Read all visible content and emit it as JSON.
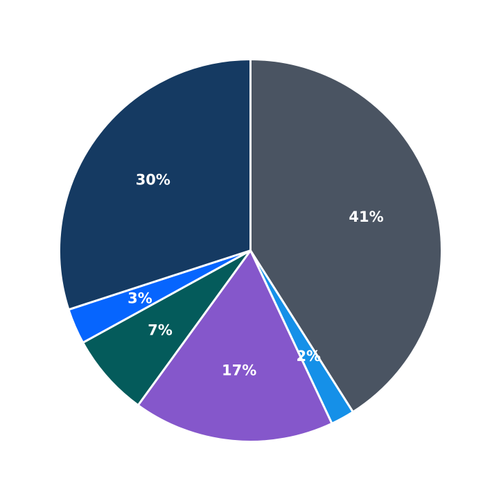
{
  "chart_data": {
    "type": "pie",
    "title": "",
    "start": "12 o'clock",
    "direction": "clockwise",
    "legend": "none",
    "slices": [
      {
        "value": 41,
        "label": "41%",
        "color": "#4a5462"
      },
      {
        "value": 2,
        "label": "2%",
        "color": "#1590e8"
      },
      {
        "value": 17,
        "label": "17%",
        "color": "#8557cb"
      },
      {
        "value": 7,
        "label": "7%",
        "color": "#045b5b"
      },
      {
        "value": 3,
        "label": "3%",
        "color": "#0665fe"
      },
      {
        "value": 30,
        "label": "30%",
        "color": "#153a62"
      }
    ]
  }
}
